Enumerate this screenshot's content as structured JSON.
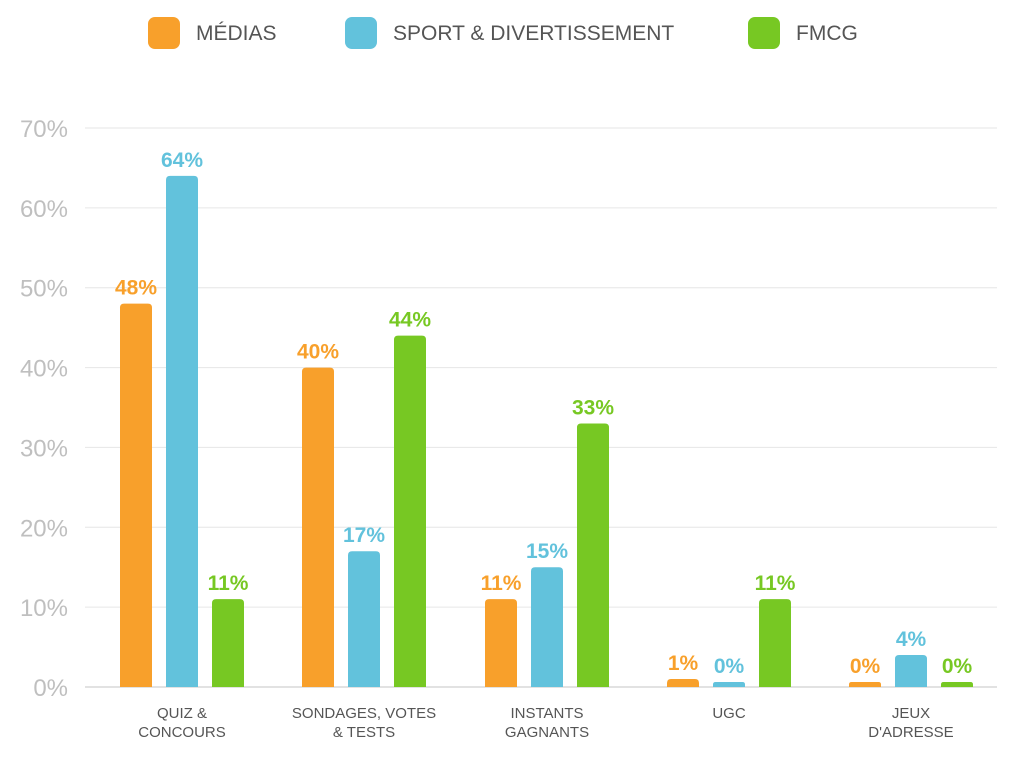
{
  "chart_data": {
    "type": "bar",
    "categories": [
      [
        "QUIZ &",
        "CONCOURS"
      ],
      [
        "SONDAGES, VOTES",
        "& TESTS"
      ],
      [
        "INSTANTS",
        "GAGNANTS"
      ],
      [
        "UGC"
      ],
      [
        "JEUX",
        "D'ADRESSE"
      ]
    ],
    "series": [
      {
        "name": "MÉDIAS",
        "color": "#f8a02b",
        "values": [
          48,
          40,
          11,
          1,
          0
        ]
      },
      {
        "name": "SPORT & DIVERTISSEMENT",
        "color": "#62c2dc",
        "values": [
          64,
          17,
          15,
          0,
          4
        ]
      },
      {
        "name": "FMCG",
        "color": "#77c823",
        "values": [
          11,
          44,
          33,
          11,
          0
        ]
      }
    ],
    "value_suffix": "%",
    "ylim": [
      0,
      70
    ],
    "yticks": [
      0,
      10,
      20,
      30,
      40,
      50,
      60,
      70
    ],
    "ytick_labels": [
      "0%",
      "10%",
      "20%",
      "30%",
      "40%",
      "50%",
      "60%",
      "70%"
    ],
    "grid": true,
    "legend_position": "top-center"
  }
}
